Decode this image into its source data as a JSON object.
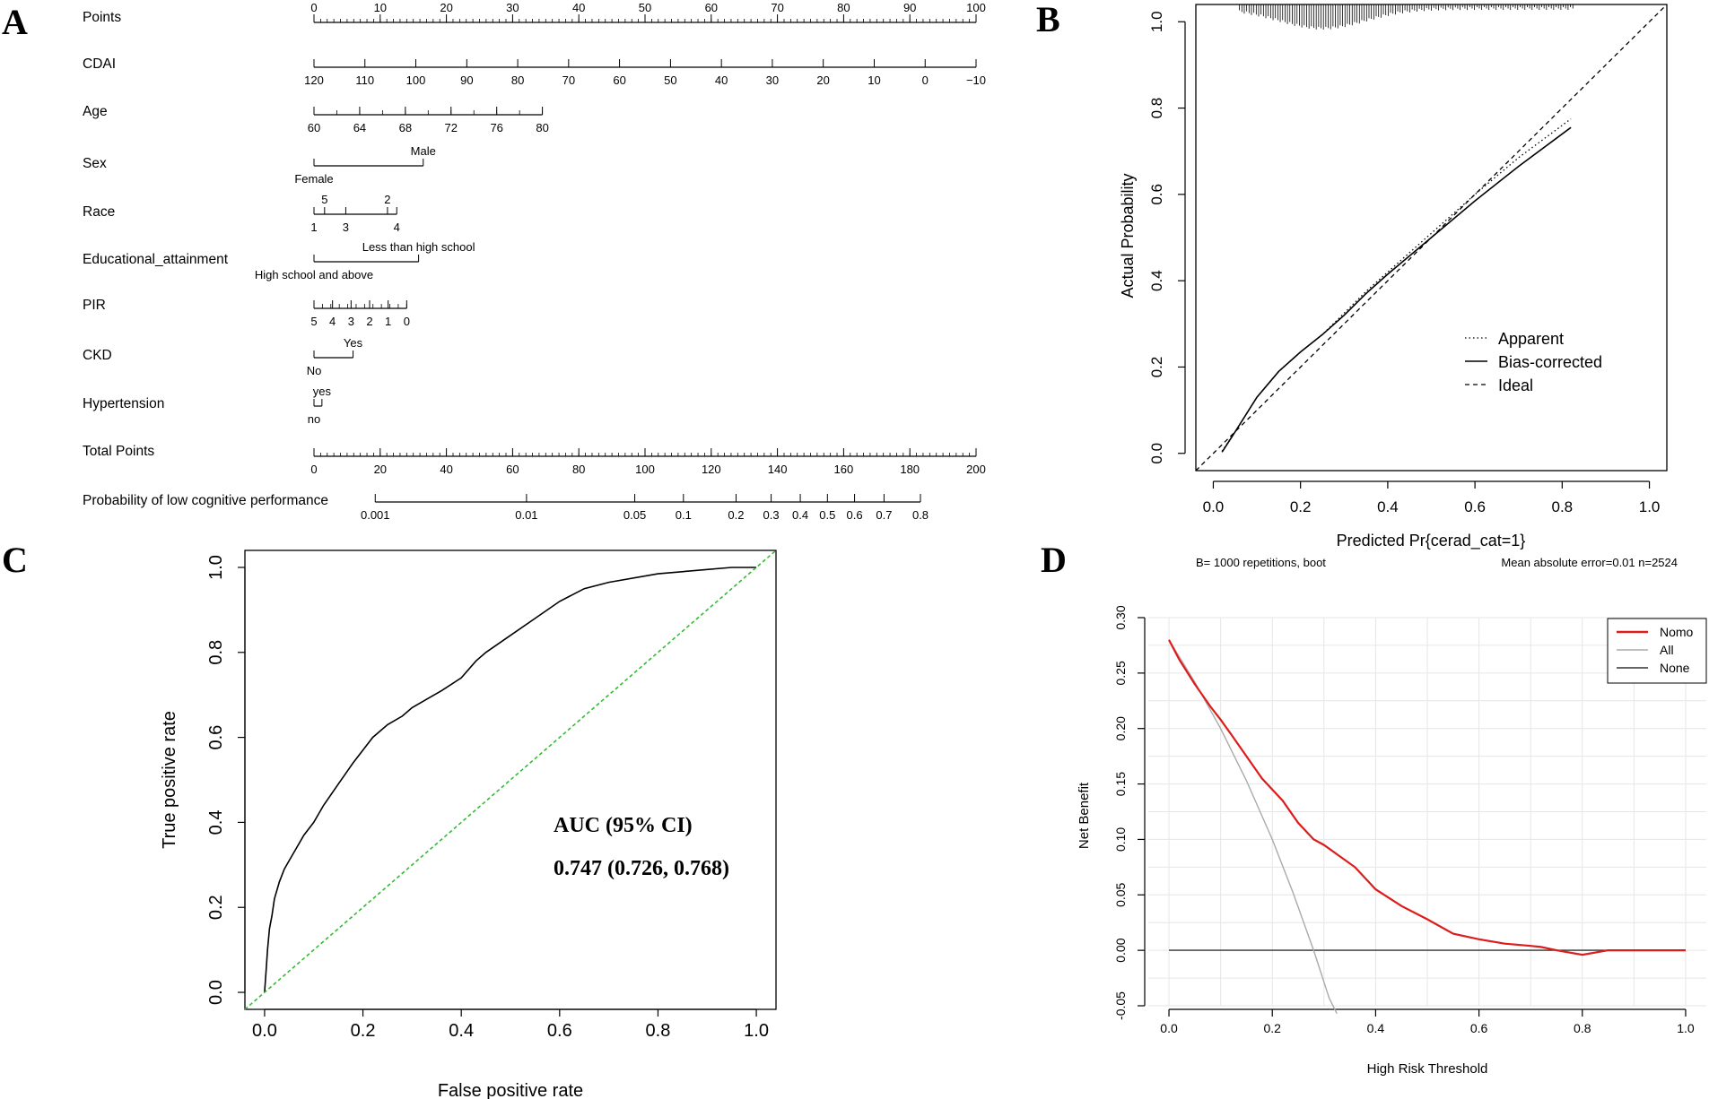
{
  "panels": {
    "a": "A",
    "b": "B",
    "c": "C",
    "d": "D"
  },
  "chart_data": [
    {
      "type": "nomogram",
      "panel": "A",
      "rows": [
        {
          "label": "Points",
          "kind": "axis",
          "ticks": [
            0,
            10,
            20,
            30,
            40,
            50,
            60,
            70,
            80,
            90,
            100
          ],
          "tick_labels": [
            "0",
            "10",
            "20",
            "30",
            "40",
            "50",
            "60",
            "70",
            "80",
            "90",
            "100"
          ],
          "tick_points": [
            0,
            10,
            20,
            30,
            40,
            50,
            60,
            70,
            80,
            90,
            100
          ],
          "minor_step_points": 1
        },
        {
          "label": "CDAI",
          "kind": "axis",
          "tick_labels": [
            "120",
            "110",
            "100",
            "90",
            "80",
            "70",
            "60",
            "50",
            "40",
            "30",
            "20",
            "10",
            "0",
            "−10"
          ],
          "tick_points": [
            0,
            7.69,
            15.38,
            23.08,
            30.77,
            38.46,
            46.15,
            53.85,
            61.54,
            69.23,
            76.92,
            84.62,
            92.31,
            100
          ]
        },
        {
          "label": "Age",
          "kind": "axis",
          "tick_labels": [
            "60",
            "64",
            "68",
            "72",
            "76",
            "80"
          ],
          "tick_points": [
            0,
            6.9,
            13.8,
            20.7,
            27.6,
            34.5
          ],
          "minor_count": 10
        },
        {
          "label": "Sex",
          "kind": "categorical",
          "levels": [
            {
              "name": "Female",
              "points": 0,
              "side": "below"
            },
            {
              "name": "Male",
              "points": 16.5,
              "side": "above"
            }
          ]
        },
        {
          "label": "Race",
          "kind": "categorical",
          "levels": [
            {
              "name": "1",
              "points": 0,
              "side": "below"
            },
            {
              "name": "5",
              "points": 1.6,
              "side": "above"
            },
            {
              "name": "3",
              "points": 4.8,
              "side": "below"
            },
            {
              "name": "2",
              "points": 11.1,
              "side": "above"
            },
            {
              "name": "4",
              "points": 12.5,
              "side": "below"
            }
          ]
        },
        {
          "label": "Educational_attainment",
          "kind": "categorical",
          "levels": [
            {
              "name": "High school and above",
              "points": 0,
              "side": "below"
            },
            {
              "name": "Less than high school",
              "points": 15.8,
              "side": "above"
            }
          ]
        },
        {
          "label": "PIR",
          "kind": "axis",
          "tick_labels": [
            "5",
            "4",
            "3",
            "2",
            "1",
            "0"
          ],
          "tick_points": [
            0,
            2.8,
            5.6,
            8.4,
            11.2,
            14
          ],
          "minor_count": 11
        },
        {
          "label": "CKD",
          "kind": "categorical",
          "levels": [
            {
              "name": "No",
              "points": 0,
              "side": "below"
            },
            {
              "name": "Yes",
              "points": 5.9,
              "side": "above"
            }
          ]
        },
        {
          "label": "Hypertension",
          "kind": "categorical",
          "levels": [
            {
              "name": "no",
              "points": 0,
              "side": "below"
            },
            {
              "name": "yes",
              "points": 1.2,
              "side": "above"
            }
          ]
        },
        {
          "label": "Total Points",
          "kind": "axis",
          "total": true,
          "ticks": [
            0,
            20,
            40,
            60,
            80,
            100,
            120,
            140,
            160,
            180,
            200
          ],
          "tick_labels": [
            "0",
            "20",
            "40",
            "60",
            "80",
            "100",
            "120",
            "140",
            "160",
            "180",
            "200"
          ],
          "minor_step_total": 2
        },
        {
          "label": "Probability of low cognitive performance",
          "kind": "axis",
          "total": true,
          "tick_labels": [
            "0.001",
            "0.01",
            "0.05",
            "0.1",
            "0.2",
            "0.3",
            "0.4",
            "0.5",
            "0.6",
            "0.7",
            "0.8"
          ],
          "tick_totals": [
            18.5,
            64.2,
            96.9,
            111.6,
            127.5,
            138.1,
            146.9,
            155.1,
            163.3,
            172.2,
            183.2
          ]
        }
      ]
    },
    {
      "type": "line",
      "panel": "B",
      "xlabel": "Predicted Pr{cerad_cat=1}",
      "ylabel": "Actual Probability",
      "xlim": [
        -0.04,
        1.04
      ],
      "ylim": [
        -0.04,
        1.04
      ],
      "xticks": [
        0.0,
        0.2,
        0.4,
        0.6,
        0.8,
        1.0
      ],
      "xtick_labels": [
        "0.0",
        "0.2",
        "0.4",
        "0.6",
        "0.8",
        "1.0"
      ],
      "yticks": [
        0.0,
        0.2,
        0.4,
        0.6,
        0.8,
        1.0
      ],
      "ytick_labels": [
        "0.0",
        "0.2",
        "0.4",
        "0.6",
        "0.8",
        "1.0"
      ],
      "series": [
        {
          "name": "Apparent",
          "style": "dotted",
          "x": [
            0.02,
            0.05,
            0.1,
            0.15,
            0.2,
            0.25,
            0.3,
            0.35,
            0.4,
            0.5,
            0.6,
            0.7,
            0.82
          ],
          "y": [
            0.005,
            0.05,
            0.13,
            0.19,
            0.235,
            0.275,
            0.325,
            0.375,
            0.42,
            0.51,
            0.6,
            0.685,
            0.775
          ]
        },
        {
          "name": "Bias-corrected",
          "style": "solid",
          "x": [
            0.02,
            0.05,
            0.1,
            0.15,
            0.2,
            0.25,
            0.3,
            0.35,
            0.4,
            0.5,
            0.6,
            0.7,
            0.82
          ],
          "y": [
            0.003,
            0.05,
            0.13,
            0.19,
            0.235,
            0.275,
            0.32,
            0.37,
            0.415,
            0.5,
            0.585,
            0.665,
            0.755
          ]
        },
        {
          "name": "Ideal",
          "style": "dashed",
          "x": [
            -0.04,
            1.04
          ],
          "y": [
            -0.04,
            1.04
          ]
        }
      ],
      "legend": "bottom-right",
      "footer_left": "B= 1000 repetitions, boot",
      "footer_right": "Mean absolute error=0.01 n=2524"
    },
    {
      "type": "line",
      "panel": "C",
      "xlabel": "False positive rate",
      "ylabel": "True positive rate",
      "xlim": [
        -0.04,
        1.04
      ],
      "ylim": [
        -0.04,
        1.04
      ],
      "xticks": [
        0.0,
        0.2,
        0.4,
        0.6,
        0.8,
        1.0
      ],
      "xtick_labels": [
        "0.0",
        "0.2",
        "0.4",
        "0.6",
        "0.8",
        "1.0"
      ],
      "yticks": [
        0.0,
        0.2,
        0.4,
        0.6,
        0.8,
        1.0
      ],
      "ytick_labels": [
        "0.0",
        "0.2",
        "0.4",
        "0.6",
        "0.8",
        "1.0"
      ],
      "series": [
        {
          "name": "ROC",
          "style": "solid",
          "color": "#000000",
          "x": [
            0,
            0.003,
            0.006,
            0.01,
            0.015,
            0.02,
            0.03,
            0.04,
            0.05,
            0.06,
            0.08,
            0.1,
            0.12,
            0.15,
            0.18,
            0.2,
            0.22,
            0.25,
            0.28,
            0.3,
            0.33,
            0.36,
            0.4,
            0.43,
            0.45,
            0.5,
            0.55,
            0.6,
            0.65,
            0.7,
            0.8,
            0.9,
            0.95,
            1.0
          ],
          "y": [
            0,
            0.05,
            0.1,
            0.15,
            0.18,
            0.22,
            0.26,
            0.29,
            0.31,
            0.33,
            0.37,
            0.4,
            0.44,
            0.49,
            0.54,
            0.57,
            0.6,
            0.63,
            0.65,
            0.67,
            0.69,
            0.71,
            0.74,
            0.78,
            0.8,
            0.84,
            0.88,
            0.92,
            0.95,
            0.965,
            0.985,
            0.995,
            1.0,
            1.0
          ]
        },
        {
          "name": "Reference",
          "style": "dashed",
          "color": "#33bb33",
          "x": [
            -0.04,
            1.04
          ],
          "y": [
            -0.04,
            1.04
          ]
        }
      ],
      "annotation_title": "AUC (95% CI)",
      "annotation_value": "0.747 (0.726, 0.768)"
    },
    {
      "type": "line",
      "panel": "D",
      "xlabel": "High Risk Threshold",
      "ylabel": "Net Benefit",
      "xlim": [
        -0.04,
        1.04
      ],
      "ylim": [
        -0.05,
        0.3
      ],
      "xticks": [
        0.0,
        0.2,
        0.4,
        0.6,
        0.8,
        1.0
      ],
      "xtick_labels": [
        "0.0",
        "0.2",
        "0.4",
        "0.6",
        "0.8",
        "1.0"
      ],
      "yticks": [
        -0.05,
        0.0,
        0.05,
        0.1,
        0.15,
        0.2,
        0.25,
        0.3
      ],
      "ytick_labels": [
        "-0.05",
        "0.00",
        "0.05",
        "0.10",
        "0.15",
        "0.20",
        "0.25",
        "0.30"
      ],
      "grid": true,
      "series": [
        {
          "name": "Nomo",
          "color": "#dd1c1c",
          "x": [
            0,
            0.02,
            0.05,
            0.08,
            0.1,
            0.12,
            0.15,
            0.18,
            0.2,
            0.22,
            0.25,
            0.28,
            0.3,
            0.33,
            0.36,
            0.4,
            0.45,
            0.5,
            0.55,
            0.6,
            0.65,
            0.7,
            0.72,
            0.75,
            0.8,
            0.85,
            0.9,
            1.0
          ],
          "y": [
            0.28,
            0.262,
            0.24,
            0.22,
            0.208,
            0.195,
            0.175,
            0.155,
            0.145,
            0.135,
            0.115,
            0.1,
            0.095,
            0.085,
            0.075,
            0.055,
            0.04,
            0.028,
            0.015,
            0.01,
            0.006,
            0.004,
            0.003,
            0.0,
            -0.004,
            0.0,
            0.0,
            0.0
          ]
        },
        {
          "name": "All",
          "color": "#aaaaaa",
          "x": [
            0,
            0.05,
            0.1,
            0.15,
            0.2,
            0.24,
            0.28,
            0.31,
            0.325
          ],
          "y": [
            0.28,
            0.242,
            0.2,
            0.153,
            0.1,
            0.052,
            0.0,
            -0.043,
            -0.057
          ]
        },
        {
          "name": "None",
          "color": "#333333",
          "x": [
            0,
            1.0
          ],
          "y": [
            0,
            0
          ]
        }
      ],
      "legend": "top-right"
    }
  ]
}
